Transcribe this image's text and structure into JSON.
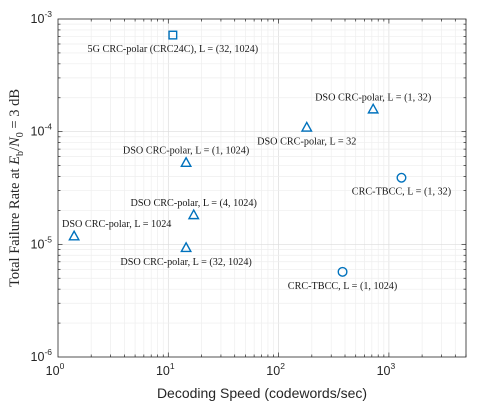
{
  "chart_data": {
    "type": "scatter",
    "title": "",
    "xlabel": "Decoding Speed (codewords/sec)",
    "ylabel_parts": [
      "Total Failure Rate at ",
      "E",
      "b",
      "/",
      "N",
      "0",
      " = 3 dB"
    ],
    "x_scale": "log",
    "y_scale": "log",
    "xlim": [
      1,
      5000
    ],
    "ylim": [
      1e-06,
      0.001
    ],
    "grid": true,
    "minor_grid": true,
    "color": "#0072BD",
    "x_ticks": [
      {
        "base": "10",
        "exp": "0",
        "value": 1
      },
      {
        "base": "10",
        "exp": "1",
        "value": 10
      },
      {
        "base": "10",
        "exp": "2",
        "value": 100
      },
      {
        "base": "10",
        "exp": "3",
        "value": 1000
      }
    ],
    "y_ticks": [
      {
        "base": "10",
        "exp": "-6",
        "value": 1e-06
      },
      {
        "base": "10",
        "exp": "-5",
        "value": 1e-05
      },
      {
        "base": "10",
        "exp": "-4",
        "value": 0.0001
      },
      {
        "base": "10",
        "exp": "-3",
        "value": 0.001
      }
    ],
    "points": [
      {
        "x": 11,
        "y": 0.00072,
        "marker": "square",
        "label": "5G CRC-polar (CRC24C), L = (32, 1024)",
        "label_pos": "below"
      },
      {
        "x": 720,
        "y": 0.000158,
        "marker": "triangle",
        "label": "DSO CRC-polar, L = (1, 32)",
        "label_pos": "above"
      },
      {
        "x": 180,
        "y": 0.000109,
        "marker": "triangle",
        "label": "DSO CRC-polar, L = 32",
        "label_pos": "below"
      },
      {
        "x": 14.5,
        "y": 5.3e-05,
        "marker": "triangle",
        "label": "DSO CRC-polar, L = (1, 1024)",
        "label_pos": "above"
      },
      {
        "x": 1300,
        "y": 3.9e-05,
        "marker": "circle",
        "label": "CRC-TBCC, L = (1, 32)",
        "label_pos": "below"
      },
      {
        "x": 17,
        "y": 1.82e-05,
        "marker": "triangle",
        "label": "DSO CRC-polar, L = (4, 1024)",
        "label_pos": "above"
      },
      {
        "x": 1.4,
        "y": 1.18e-05,
        "marker": "triangle",
        "label": "DSO CRC-polar, L = 1024",
        "label_pos": "above"
      },
      {
        "x": 14.5,
        "y": 9.3e-06,
        "marker": "triangle",
        "label": "DSO CRC-polar, L = (32, 1024)",
        "label_pos": "below"
      },
      {
        "x": 380,
        "y": 5.7e-06,
        "marker": "circle",
        "label": "CRC-TBCC, L = (1, 1024)",
        "label_pos": "below"
      }
    ]
  }
}
